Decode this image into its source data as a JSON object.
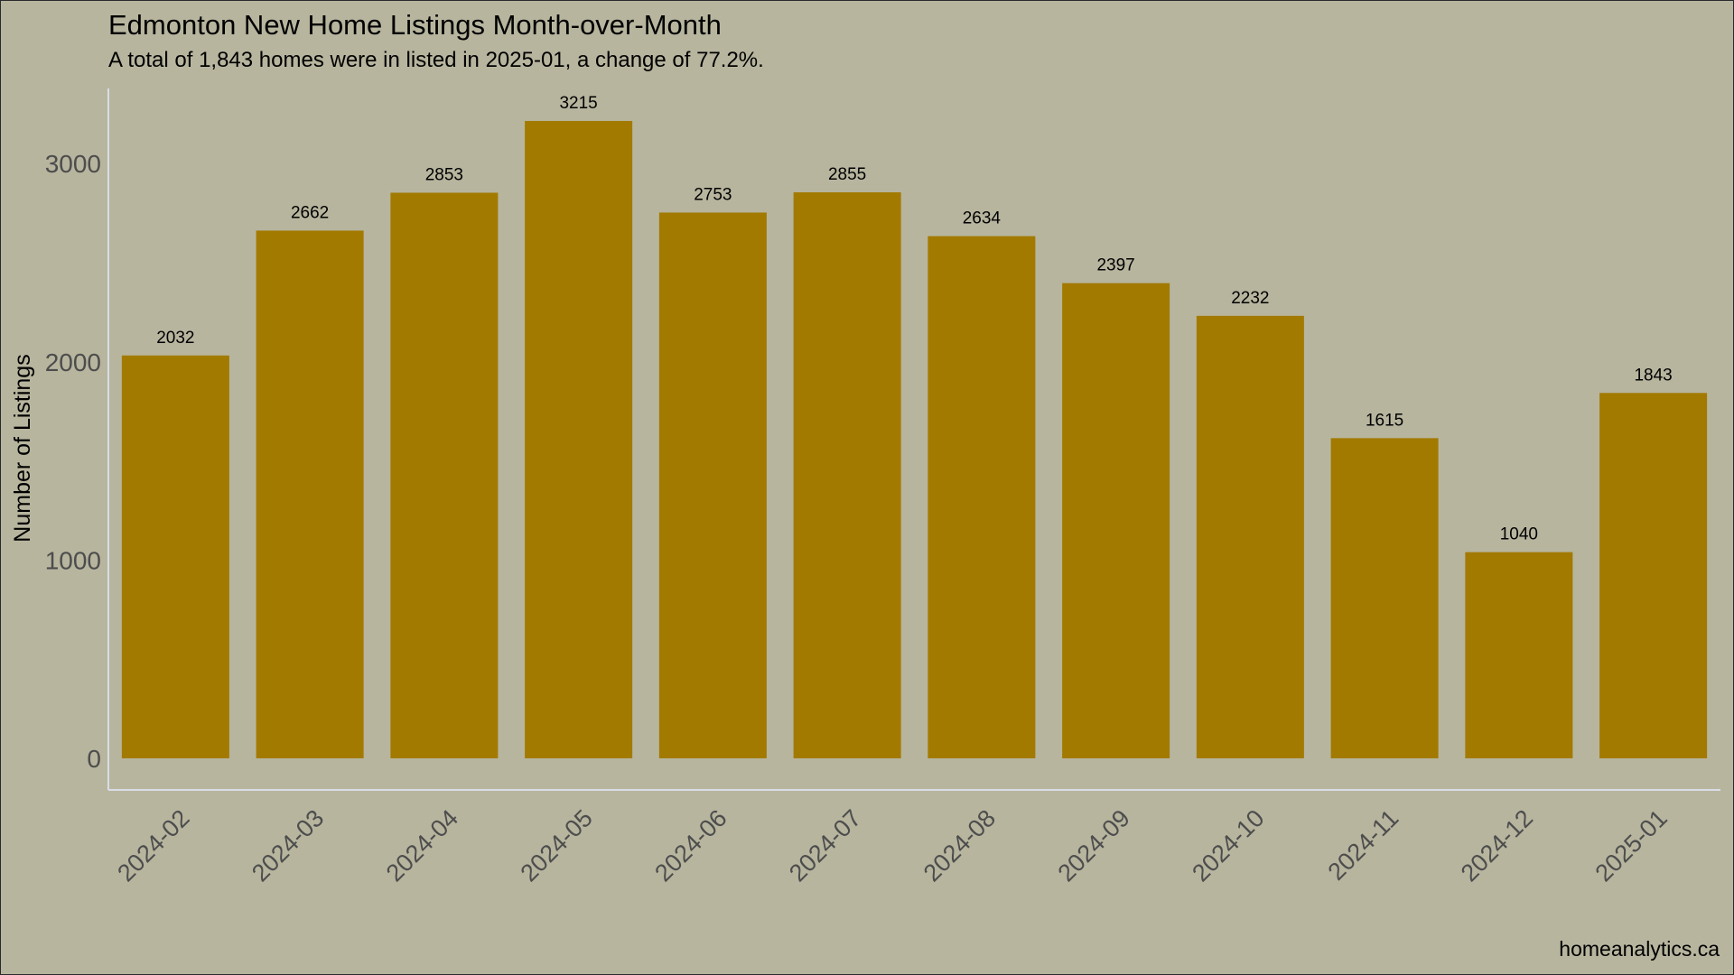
{
  "chart_data": {
    "type": "bar",
    "title": "Edmonton New Home Listings Month-over-Month",
    "subtitle": "A total of 1,843 homes were in listed in 2025-01, a change of 77.2%.",
    "ylabel": "Number of Listings",
    "xlabel": "",
    "caption": "homeanalytics.ca",
    "categories": [
      "2024-02",
      "2024-03",
      "2024-04",
      "2024-05",
      "2024-06",
      "2024-07",
      "2024-08",
      "2024-09",
      "2024-10",
      "2024-11",
      "2024-12",
      "2025-01"
    ],
    "values": [
      2032,
      2662,
      2853,
      3215,
      2753,
      2855,
      2634,
      2397,
      2232,
      1615,
      1040,
      1843
    ],
    "ylim": [
      0,
      3300
    ],
    "yticks": [
      0,
      1000,
      2000,
      3000
    ],
    "grid": false,
    "legend": "none",
    "colors": {
      "bar": "#a37a00",
      "background": "#b7b59e",
      "axis_line": "#d9dde6"
    }
  }
}
